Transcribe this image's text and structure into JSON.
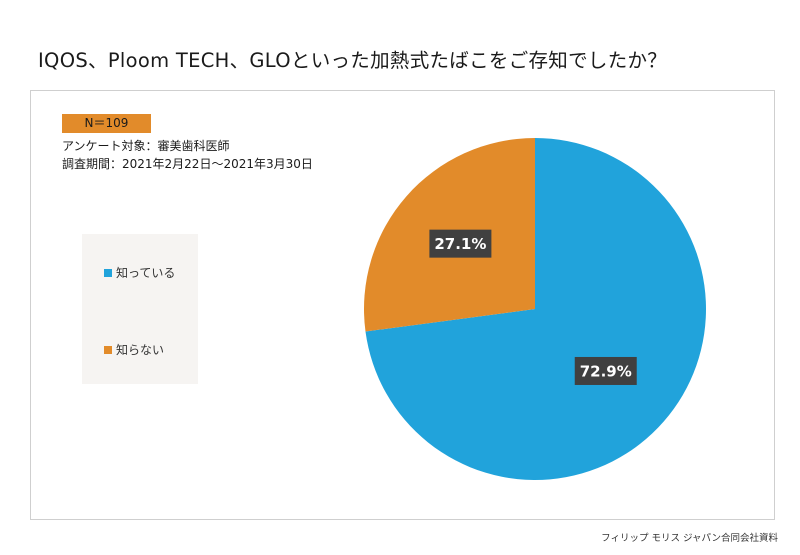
{
  "page": {
    "title": "IQOS、Ploom TECH、GLOといった加熱式たばこをご存知でしたか？",
    "badge": "N＝109",
    "meta_target": "アンケート対象：審美歯科医師",
    "meta_period": "調査期間：2021年2月22日～2021年3月30日",
    "footer": "フィリップ モリス ジャパン合同会社資料"
  },
  "chart_data": {
    "type": "pie",
    "start": "top",
    "direction": "clockwise",
    "legend_position": "left",
    "slices": [
      {
        "name": "知っている",
        "value": 72.9,
        "label": "72.9%",
        "color": "#21a3db"
      },
      {
        "name": "知らない",
        "value": 27.1,
        "label": "27.1%",
        "color": "#e28b2a"
      }
    ]
  }
}
